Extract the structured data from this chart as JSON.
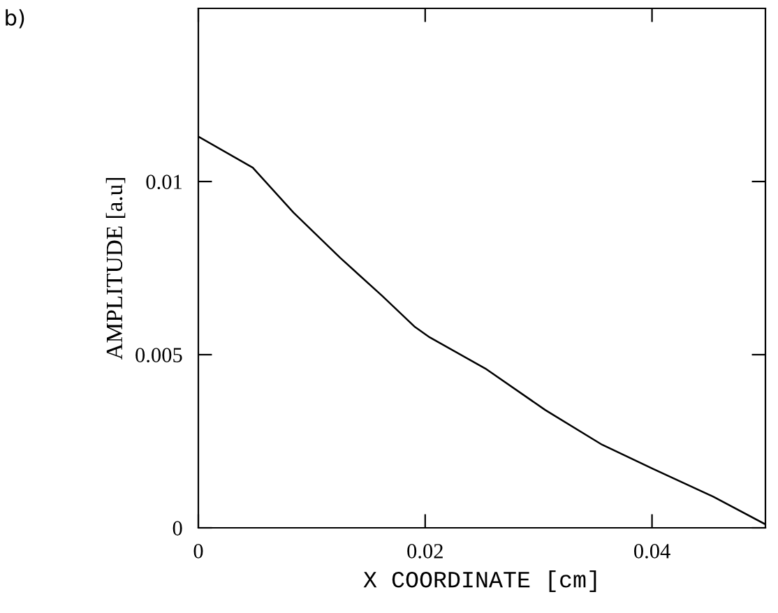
{
  "chart_data": {
    "type": "line",
    "xlabel": "X COORDINATE [cm]",
    "ylabel": "AMPLITUDE [a.u]",
    "annotations": [
      "b)"
    ],
    "x": [
      0,
      0.0048,
      0.0084,
      0.0125,
      0.0162,
      0.0191,
      0.0204,
      0.0253,
      0.0306,
      0.0356,
      0.0401,
      0.0454,
      0.05
    ],
    "series": [
      {
        "color": "#000000",
        "values": [
          0.0113,
          0.0104,
          0.0091,
          0.0078,
          0.0067,
          0.0058,
          0.0055,
          0.0046,
          0.0034,
          0.0024,
          0.0017,
          0.0009,
          0.0001
        ]
      }
    ],
    "xlim": [
      0,
      0.05
    ],
    "ylim": [
      0,
      0.015
    ],
    "xticks": [
      0,
      0.02,
      0.04
    ],
    "yticks": [
      0,
      0.005,
      0.01
    ],
    "grid": false,
    "legend": false,
    "marker": "none",
    "line_style": "solid"
  }
}
